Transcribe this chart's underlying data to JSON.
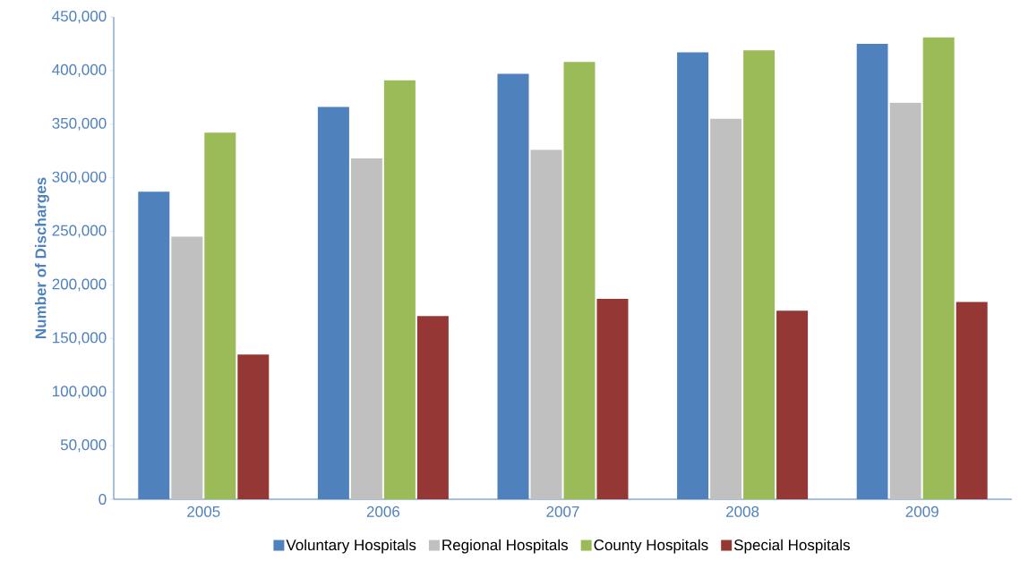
{
  "chart_data": {
    "type": "bar",
    "ylabel": "Number of Discharges",
    "categories": [
      "2005",
      "2006",
      "2007",
      "2008",
      "2009"
    ],
    "series": [
      {
        "name": "Voluntary Hospitals",
        "color": "#4f81bd",
        "values": [
          287000,
          366000,
          397000,
          417000,
          425000
        ]
      },
      {
        "name": "Regional Hospitals",
        "color": "#c0c0c0",
        "values": [
          245000,
          318000,
          326000,
          355000,
          370000
        ]
      },
      {
        "name": "County Hospitals",
        "color": "#9bbb59",
        "values": [
          342000,
          391000,
          408000,
          419000,
          431000
        ]
      },
      {
        "name": "Special Hospitals",
        "color": "#953735",
        "values": [
          135000,
          171000,
          187000,
          176000,
          184000
        ]
      }
    ],
    "ylim": [
      0,
      450000
    ],
    "yticks": [
      0,
      {
        "value": 50000,
        "label": "50,000"
      },
      {
        "value": 100000,
        "label": "100,000"
      },
      {
        "value": 150000,
        "label": "150,000"
      },
      {
        "value": 200000,
        "label": "200,000"
      },
      {
        "value": 250000,
        "label": "250,000"
      },
      {
        "value": 300000,
        "label": "300,000"
      },
      {
        "value": 350000,
        "label": "350,000"
      },
      {
        "value": 400000,
        "label": "400,000"
      },
      {
        "value": 450000,
        "label": "450,000"
      }
    ],
    "grid": false,
    "legend": "bottom"
  }
}
